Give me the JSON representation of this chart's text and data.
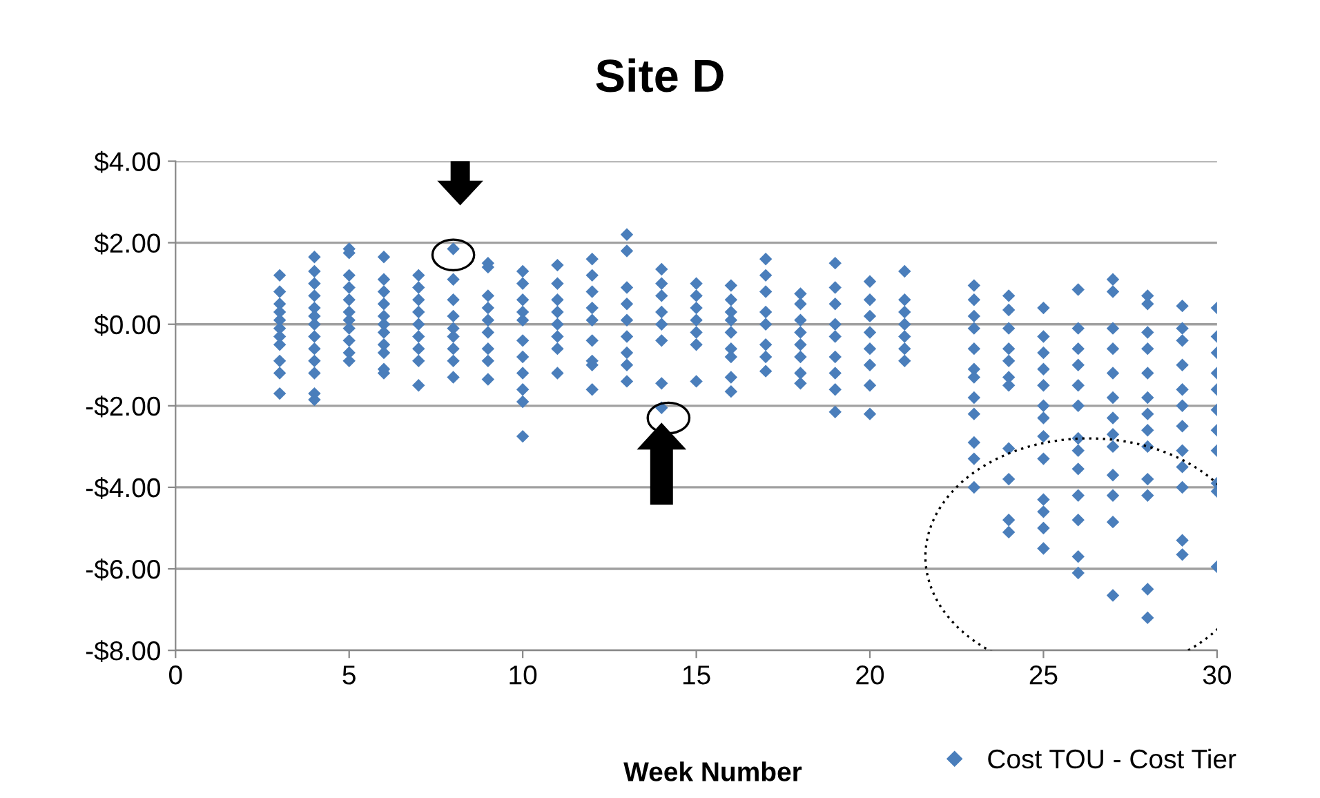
{
  "chart_data": {
    "type": "scatter",
    "title": "Site D",
    "xlabel": "Week Number",
    "xlim": [
      0,
      30
    ],
    "xticks": [
      0,
      5,
      10,
      15,
      20,
      25,
      30
    ],
    "ylim": [
      -8,
      4
    ],
    "yticks": [
      {
        "value": -8,
        "label": "-$8.00"
      },
      {
        "value": -6,
        "label": "-$6.00"
      },
      {
        "value": -4,
        "label": "-$4.00"
      },
      {
        "value": -2,
        "label": "-$2.00"
      },
      {
        "value": 0,
        "label": "$0.00"
      },
      {
        "value": 2,
        "label": "$2.00"
      },
      {
        "value": 4,
        "label": "$4.00"
      }
    ],
    "grid": "y",
    "legend": "bottom right",
    "marker": "diamond",
    "series": [
      {
        "name": "Cost TOU - Cost Tier",
        "color": "#4a7ebb",
        "x": [
          3,
          3,
          3,
          3,
          3,
          3,
          3,
          3,
          3,
          3,
          3,
          4,
          4,
          4,
          4,
          4,
          4,
          4,
          4,
          4,
          4,
          4,
          4,
          4,
          5,
          5,
          5,
          5,
          5,
          5,
          5,
          5,
          5,
          5,
          5,
          6,
          6,
          6,
          6,
          6,
          6,
          6,
          6,
          6,
          6,
          6,
          7,
          7,
          7,
          7,
          7,
          7,
          7,
          7,
          7,
          8,
          8,
          8,
          8,
          8,
          8,
          8,
          8,
          8,
          9,
          9,
          9,
          9,
          9,
          9,
          9,
          9,
          9,
          10,
          10,
          10,
          10,
          10,
          10,
          10,
          10,
          10,
          10,
          10,
          11,
          11,
          11,
          11,
          11,
          11,
          11,
          11,
          12,
          12,
          12,
          12,
          12,
          12,
          12,
          12,
          12,
          13,
          13,
          13,
          13,
          13,
          13,
          13,
          13,
          13,
          14,
          14,
          14,
          14,
          14,
          14,
          14,
          14,
          15,
          15,
          15,
          15,
          15,
          15,
          15,
          16,
          16,
          16,
          16,
          16,
          16,
          16,
          16,
          16,
          17,
          17,
          17,
          17,
          17,
          17,
          17,
          17,
          18,
          18,
          18,
          18,
          18,
          18,
          18,
          18,
          19,
          19,
          19,
          19,
          19,
          19,
          19,
          19,
          19,
          20,
          20,
          20,
          20,
          20,
          20,
          20,
          20,
          21,
          21,
          21,
          21,
          21,
          21,
          21,
          23,
          23,
          23,
          23,
          23,
          23,
          23,
          23,
          23,
          23,
          23,
          23,
          24,
          24,
          24,
          24,
          24,
          24,
          24,
          24,
          24,
          24,
          24,
          25,
          25,
          25,
          25,
          25,
          25,
          25,
          25,
          25,
          25,
          25,
          25,
          25,
          26,
          26,
          26,
          26,
          26,
          26,
          26,
          26,
          26,
          26,
          26,
          26,
          26,
          27,
          27,
          27,
          27,
          27,
          27,
          27,
          27,
          27,
          27,
          27,
          27,
          27,
          28,
          28,
          28,
          28,
          28,
          28,
          28,
          28,
          28,
          28,
          28,
          28,
          28,
          29,
          29,
          29,
          29,
          29,
          29,
          29,
          29,
          29,
          29,
          29,
          29,
          30,
          30,
          30,
          30,
          30,
          30,
          30,
          30,
          30,
          30,
          30
        ],
        "values": [
          1.2,
          0.8,
          0.5,
          0.3,
          0.1,
          -0.1,
          -0.3,
          -0.5,
          -0.9,
          -1.2,
          -1.7,
          1.65,
          1.3,
          1.0,
          0.7,
          0.4,
          0.2,
          0.0,
          -0.3,
          -0.6,
          -0.9,
          -1.2,
          -1.7,
          -1.85,
          1.85,
          1.75,
          1.2,
          0.9,
          0.6,
          0.3,
          0.1,
          -0.1,
          -0.4,
          -0.7,
          -0.9,
          1.65,
          1.1,
          0.8,
          0.5,
          0.2,
          0.0,
          -0.2,
          -0.5,
          -0.7,
          -1.1,
          -1.2,
          1.2,
          0.9,
          0.6,
          0.3,
          0.0,
          -0.3,
          -0.6,
          -0.9,
          -1.5,
          1.85,
          1.1,
          0.6,
          0.2,
          -0.1,
          -0.3,
          -0.6,
          -0.9,
          -1.3,
          1.5,
          1.4,
          0.7,
          0.4,
          0.1,
          -0.2,
          -0.6,
          -0.9,
          -1.35,
          1.3,
          1.0,
          0.6,
          0.3,
          0.1,
          -0.4,
          -0.8,
          -1.2,
          -1.6,
          -1.9,
          -2.75,
          1.45,
          1.0,
          0.6,
          0.3,
          0.0,
          -0.3,
          -0.6,
          -1.2,
          1.6,
          1.2,
          0.8,
          0.4,
          0.1,
          -0.4,
          -0.9,
          -1.0,
          -1.6,
          2.2,
          1.8,
          0.9,
          0.5,
          0.1,
          -0.3,
          -0.7,
          -1.0,
          -1.4,
          1.35,
          1.0,
          0.7,
          0.3,
          0.0,
          -0.4,
          -1.45,
          -2.05,
          1.0,
          0.7,
          0.4,
          0.1,
          -0.2,
          -0.5,
          -1.4,
          0.95,
          0.6,
          0.3,
          0.1,
          -0.2,
          -0.6,
          -0.8,
          -1.3,
          -1.65,
          1.6,
          1.2,
          0.8,
          0.3,
          0.0,
          -0.5,
          -0.8,
          -1.15,
          0.75,
          0.5,
          0.1,
          -0.2,
          -0.5,
          -0.8,
          -1.2,
          -1.45,
          1.5,
          0.9,
          0.5,
          0.0,
          -0.3,
          -0.8,
          -1.2,
          -1.6,
          -2.15,
          1.05,
          0.6,
          0.2,
          -0.2,
          -0.6,
          -1.0,
          -1.5,
          -2.2,
          1.3,
          0.6,
          0.3,
          0.0,
          -0.3,
          -0.6,
          -0.9,
          0.95,
          0.6,
          0.2,
          -0.1,
          -0.6,
          -1.1,
          -1.3,
          -1.8,
          -2.2,
          -2.9,
          -3.3,
          -4.0,
          0.7,
          0.35,
          -0.1,
          -0.6,
          -0.9,
          -1.3,
          -1.5,
          -3.05,
          -3.8,
          -4.8,
          -5.1,
          0.4,
          -0.3,
          -0.7,
          -1.1,
          -1.5,
          -2.0,
          -2.3,
          -2.75,
          -3.3,
          -4.3,
          -4.6,
          -5.0,
          -5.5,
          0.85,
          -0.1,
          -0.6,
          -1.0,
          -1.5,
          -2.0,
          -2.8,
          -3.1,
          -3.55,
          -4.2,
          -4.8,
          -5.7,
          -6.1,
          1.1,
          0.8,
          -0.1,
          -0.6,
          -1.2,
          -1.8,
          -2.3,
          -2.7,
          -3.0,
          -3.7,
          -4.2,
          -4.85,
          -6.65,
          0.7,
          0.5,
          -0.2,
          -0.6,
          -1.2,
          -1.8,
          -2.2,
          -2.6,
          -3.0,
          -3.8,
          -4.2,
          -6.5,
          -7.2,
          0.45,
          -0.1,
          -0.4,
          -1.0,
          -1.6,
          -2.0,
          -2.5,
          -3.1,
          -3.5,
          -4.0,
          -5.3,
          -5.65,
          0.4,
          -0.3,
          -0.7,
          -1.2,
          -1.6,
          -2.1,
          -2.6,
          -3.1,
          -3.9,
          -4.1,
          -5.95
        ]
      }
    ]
  }
}
